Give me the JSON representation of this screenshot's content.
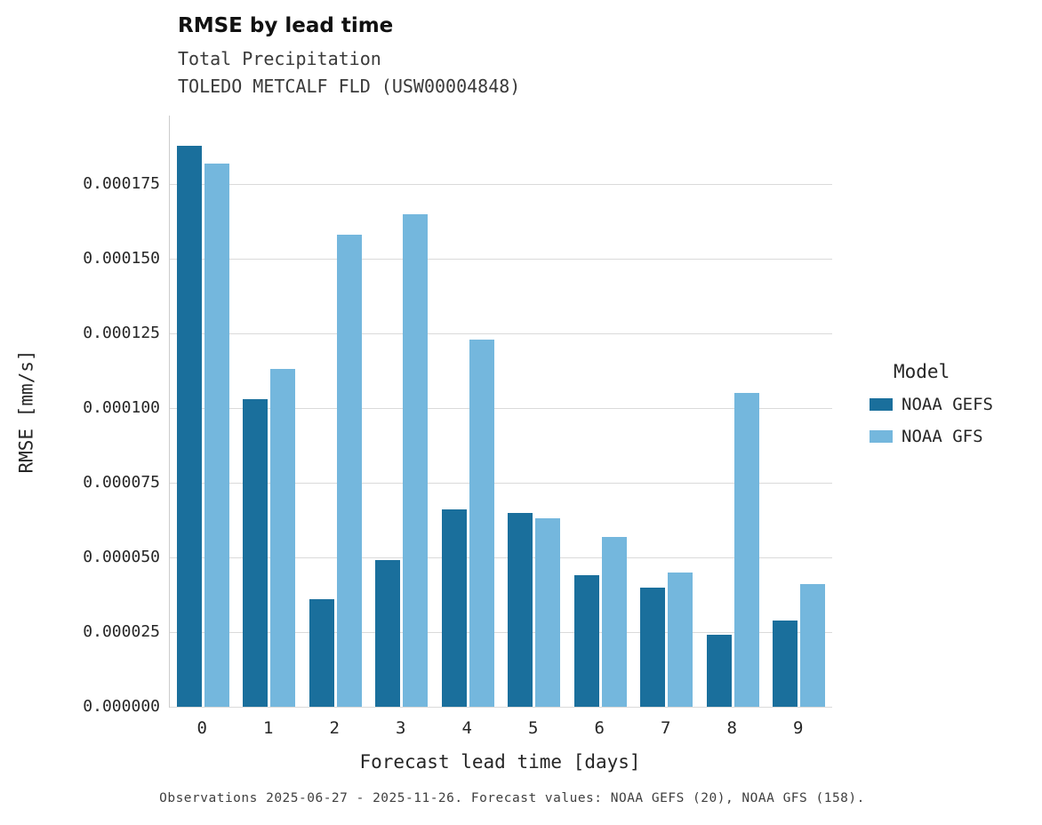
{
  "caption": "Observations 2025-06-27 - 2025-11-26. Forecast values: NOAA GEFS (20), NOAA GFS (158).",
  "chart_data": {
    "type": "bar",
    "title": "RMSE by lead time",
    "subtitle": "Total Precipitation",
    "station": "TOLEDO METCALF FLD (USW00004848)",
    "xlabel": "Forecast lead time [days]",
    "ylabel": "RMSE [mm/s]",
    "legend_title": "Model",
    "legend_position": "right",
    "grid": true,
    "categories": [
      "0",
      "1",
      "2",
      "3",
      "4",
      "5",
      "6",
      "7",
      "8",
      "9"
    ],
    "series": [
      {
        "name": "NOAA GEFS",
        "color": "#1a6f9c",
        "values": [
          0.000188,
          0.000103,
          3.6e-05,
          4.9e-05,
          6.6e-05,
          6.5e-05,
          4.4e-05,
          4e-05,
          2.4e-05,
          2.9e-05
        ]
      },
      {
        "name": "NOAA GFS",
        "color": "#74b7dd",
        "values": [
          0.000182,
          0.000113,
          0.000158,
          0.000165,
          0.000123,
          6.3e-05,
          5.7e-05,
          4.5e-05,
          0.000105,
          4.1e-05
        ]
      }
    ],
    "ylim": [
      0,
      0.000198
    ],
    "yticks": [
      0.0,
      2.5e-05,
      5e-05,
      7.5e-05,
      0.0001,
      0.000125,
      0.00015,
      0.000175
    ],
    "ytick_labels": [
      "0.000000",
      "0.000025",
      "0.000050",
      "0.000075",
      "0.000100",
      "0.000125",
      "0.000150",
      "0.000175"
    ]
  }
}
